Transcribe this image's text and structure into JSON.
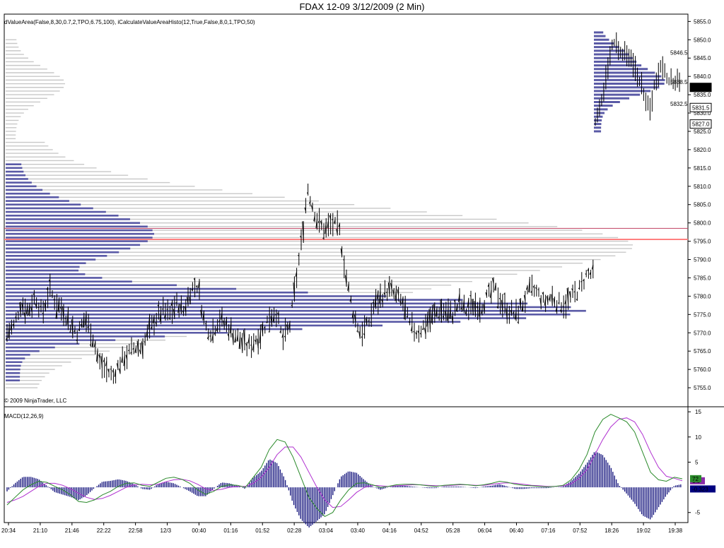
{
  "window": {
    "title": "FDAX 12-09  3/12/2009 (2 Min)"
  },
  "price_panel": {
    "indicator_label": "dValueArea(False,8,30,0.7,2,TPO,6.75,100), iCalculateValueAreaHisto(12,True,False,8,0,1,TPO,50)",
    "copyright": "© 2009 NinjaTrader, LLC",
    "right_markers": [
      {
        "label": "5837.0",
        "value": 5837.0,
        "style": "current"
      },
      {
        "label": "5831.5",
        "value": 5831.5,
        "style": "box"
      },
      {
        "label": "5827.0",
        "value": 5827.0,
        "style": "box"
      }
    ],
    "profile_labels": [
      {
        "label": "5846.5",
        "value": 5846.5,
        "color": "#2a8a2a"
      },
      {
        "label": "5838.5",
        "value": 5838.5,
        "color": "#e05050"
      },
      {
        "label": "5832.5",
        "value": 5832.5,
        "color": "#2a8a2a"
      }
    ],
    "colors": {
      "historic_profile": "#c8c8c8",
      "value_area": "#5a5aa6",
      "poc_line": "#ff8080",
      "bars": "#000000"
    }
  },
  "macd_panel": {
    "indicator_label": "MACD(12,26,9)",
    "right_markers": [
      {
        "label": "1.3",
        "value": 1.3,
        "color": "#8a2aa8"
      },
      {
        "label": "72",
        "value": 1.72,
        "color": "#2a8a2a"
      },
      {
        "label": "-0.323",
        "value": -0.323,
        "color": "#000080"
      }
    ],
    "colors": {
      "macd": "#2a8a2a",
      "signal": "#b030d0",
      "histogram": "#1a1a80"
    }
  },
  "chart_data": [
    {
      "type": "bar",
      "subtype": "ohlc-price-with-volume-profile",
      "title": "FDAX 12-09  3/12/2009 (2 Min)",
      "ylim": [
        5750,
        5857
      ],
      "y_ticks": [
        "5855.0",
        "5850.0",
        "5845.0",
        "5840.0",
        "5835.0",
        "5830.0",
        "5825.0",
        "5820.0",
        "5815.0",
        "5810.0",
        "5805.0",
        "5800.0",
        "5795.0",
        "5790.0",
        "5785.0",
        "5780.0",
        "5775.0",
        "5770.0",
        "5765.0",
        "5760.0",
        "5755.0"
      ],
      "x_ticks": [
        "20:34",
        "21:10",
        "21:46",
        "22:22",
        "22:58",
        "12/3",
        "00:40",
        "01:16",
        "01:52",
        "02:28",
        "03:04",
        "03:40",
        "04:16",
        "04:52",
        "05:28",
        "06:04",
        "06:40",
        "07:16",
        "07:52",
        "18:26",
        "19:02",
        "19:38"
      ],
      "poc_price": 5795.5,
      "price_path": [
        [
          0,
          5770
        ],
        [
          10,
          5772
        ],
        [
          20,
          5778
        ],
        [
          30,
          5776
        ],
        [
          40,
          5780
        ],
        [
          50,
          5775
        ],
        [
          60,
          5782
        ],
        [
          70,
          5778
        ],
        [
          80,
          5776
        ],
        [
          90,
          5772
        ],
        [
          100,
          5770
        ],
        [
          110,
          5774
        ],
        [
          120,
          5770
        ],
        [
          130,
          5762
        ],
        [
          140,
          5760
        ],
        [
          150,
          5758
        ],
        [
          160,
          5762
        ],
        [
          170,
          5764
        ],
        [
          180,
          5766
        ],
        [
          190,
          5766
        ],
        [
          200,
          5770
        ],
        [
          210,
          5774
        ],
        [
          220,
          5776
        ],
        [
          230,
          5775
        ],
        [
          240,
          5778
        ],
        [
          250,
          5776
        ],
        [
          260,
          5782
        ],
        [
          270,
          5783
        ],
        [
          280,
          5772
        ],
        [
          290,
          5770
        ],
        [
          300,
          5774
        ],
        [
          310,
          5772
        ],
        [
          320,
          5770
        ],
        [
          330,
          5768
        ],
        [
          340,
          5766
        ],
        [
          350,
          5768
        ],
        [
          360,
          5770
        ],
        [
          370,
          5774
        ],
        [
          380,
          5776
        ],
        [
          390,
          5768
        ],
        [
          400,
          5772
        ],
        [
          410,
          5786
        ],
        [
          420,
          5800
        ],
        [
          425,
          5810
        ],
        [
          430,
          5806
        ],
        [
          440,
          5800
        ],
        [
          450,
          5798
        ],
        [
          460,
          5800
        ],
        [
          470,
          5798
        ],
        [
          480,
          5785
        ],
        [
          490,
          5775
        ],
        [
          500,
          5770
        ],
        [
          510,
          5772
        ],
        [
          520,
          5778
        ],
        [
          530,
          5780
        ],
        [
          540,
          5782
        ],
        [
          550,
          5780
        ],
        [
          560,
          5778
        ],
        [
          570,
          5772
        ],
        [
          580,
          5770
        ],
        [
          590,
          5772
        ],
        [
          600,
          5774
        ],
        [
          610,
          5776
        ],
        [
          620,
          5776
        ],
        [
          630,
          5775
        ],
        [
          640,
          5778
        ],
        [
          650,
          5776
        ],
        [
          660,
          5778
        ],
        [
          670,
          5777
        ],
        [
          680,
          5780
        ],
        [
          690,
          5782
        ],
        [
          700,
          5778
        ],
        [
          710,
          5776
        ],
        [
          720,
          5775
        ],
        [
          730,
          5778
        ],
        [
          740,
          5782
        ],
        [
          750,
          5781
        ],
        [
          760,
          5778
        ],
        [
          770,
          5780
        ],
        [
          780,
          5778
        ],
        [
          790,
          5778
        ],
        [
          800,
          5780
        ],
        [
          810,
          5782
        ],
        [
          820,
          5786
        ],
        [
          830,
          5786
        ]
      ],
      "mini_price_path": [
        [
          0,
          5827
        ],
        [
          5,
          5830
        ],
        [
          10,
          5833
        ],
        [
          15,
          5838
        ],
        [
          20,
          5844
        ],
        [
          25,
          5848
        ],
        [
          30,
          5849
        ],
        [
          35,
          5848
        ],
        [
          40,
          5847
        ],
        [
          45,
          5846
        ],
        [
          50,
          5845
        ],
        [
          55,
          5844
        ],
        [
          60,
          5842
        ],
        [
          65,
          5840
        ],
        [
          70,
          5838
        ],
        [
          75,
          5835
        ],
        [
          80,
          5832
        ],
        [
          85,
          5832
        ],
        [
          90,
          5838
        ],
        [
          95,
          5840
        ],
        [
          100,
          5844
        ],
        [
          105,
          5842
        ],
        [
          110,
          5840
        ],
        [
          115,
          5839
        ],
        [
          120,
          5838
        ],
        [
          125,
          5840
        ],
        [
          130,
          5837
        ]
      ]
    },
    {
      "type": "line",
      "title": "MACD(12,26,9)",
      "ylim": [
        -7,
        16
      ],
      "y_ticks": [
        "15",
        "10",
        "5",
        "-5"
      ],
      "series": [
        {
          "name": "MACD",
          "values": [
            -3.5,
            -2.0,
            -0.5,
            0.5,
            1.2,
            1.0,
            0.2,
            -0.5,
            -1.5,
            -2.8,
            -3.0,
            -2.5,
            -1.5,
            -0.8,
            0.2,
            0.8,
            0.9,
            0.4,
            0.2,
            1.0,
            1.8,
            2.0,
            1.6,
            0.8,
            -0.5,
            -1.4,
            -0.8,
            0.2,
            0.5,
            0.4,
            0.0,
            2.0,
            4.0,
            7.5,
            9.5,
            9.0,
            6.0,
            2.0,
            -2.0,
            -4.2,
            -5.8,
            -5.0,
            -2.5,
            -0.5,
            0.8,
            0.9,
            0.5,
            0.0,
            0.2,
            0.5,
            0.6,
            0.6,
            0.5,
            0.3,
            0.2,
            0.4,
            0.5,
            0.6,
            0.5,
            0.3,
            0.5,
            0.8,
            1.2,
            1.0,
            0.6,
            0.4,
            0.3,
            0.2,
            0.1,
            0.2,
            0.4,
            1.5,
            3.5,
            6.5,
            11.0,
            13.5,
            14.5,
            13.8,
            13.0,
            11.0,
            7.0,
            3.0,
            1.5,
            1.2,
            2.0,
            1.7
          ]
        },
        {
          "name": "Signal",
          "values": [
            -3.0,
            -2.5,
            -1.8,
            -0.8,
            0.2,
            0.8,
            0.8,
            0.4,
            -0.3,
            -1.2,
            -2.0,
            -2.4,
            -2.2,
            -1.6,
            -0.8,
            0.0,
            0.5,
            0.6,
            0.5,
            0.6,
            1.1,
            1.5,
            1.6,
            1.3,
            0.6,
            -0.3,
            -0.6,
            -0.4,
            0.0,
            0.2,
            0.2,
            0.8,
            2.0,
            4.0,
            6.5,
            8.0,
            8.0,
            6.0,
            3.0,
            0.0,
            -2.5,
            -4.0,
            -3.8,
            -2.5,
            -1.0,
            0.0,
            0.4,
            0.3,
            0.2,
            0.3,
            0.4,
            0.5,
            0.5,
            0.4,
            0.3,
            0.3,
            0.4,
            0.5,
            0.5,
            0.4,
            0.4,
            0.6,
            0.8,
            0.9,
            0.8,
            0.6,
            0.4,
            0.3,
            0.2,
            0.2,
            0.3,
            0.7,
            1.8,
            3.5,
            6.5,
            9.5,
            12.0,
            13.5,
            13.8,
            13.0,
            10.5,
            7.0,
            4.0,
            2.2,
            1.8,
            1.3
          ]
        }
      ]
    }
  ]
}
